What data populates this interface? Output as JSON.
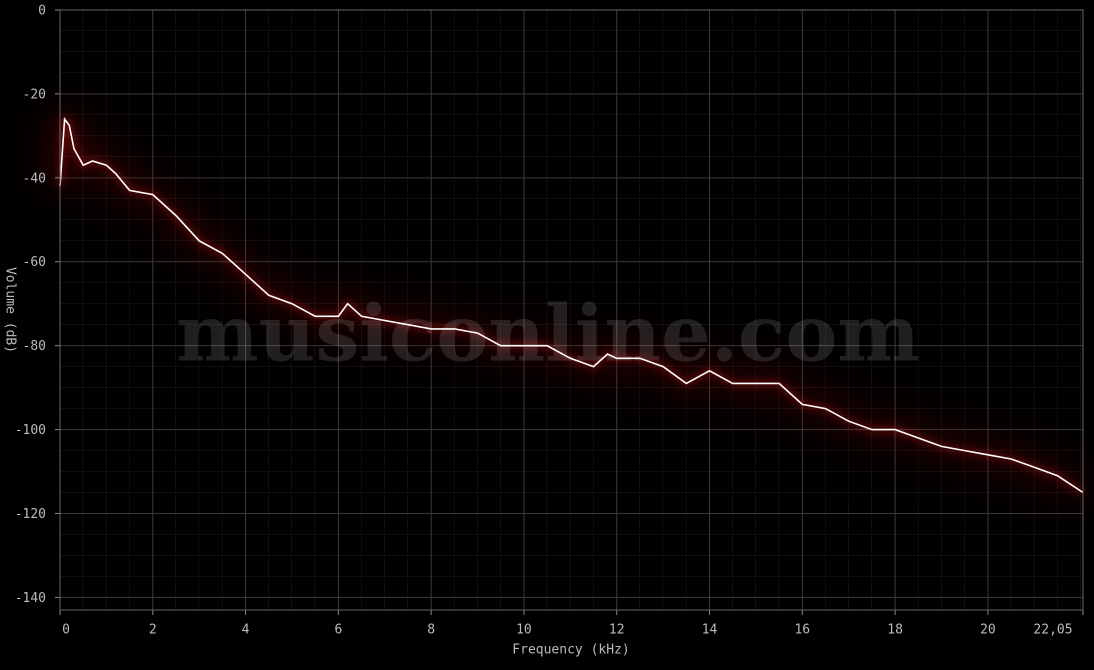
{
  "chart_data": {
    "type": "line",
    "x_label": "Frequency (kHz)",
    "y_label": "Volume (dB)",
    "watermark": "musiconline.com",
    "x": [
      0,
      0.1,
      0.2,
      0.3,
      0.5,
      0.7,
      1.0,
      1.2,
      1.5,
      2.0,
      2.5,
      3.0,
      3.5,
      4.0,
      4.5,
      5.0,
      5.5,
      6.0,
      6.2,
      6.5,
      7.0,
      7.5,
      8.0,
      8.5,
      9.0,
      9.5,
      10.0,
      10.5,
      11.0,
      11.5,
      11.8,
      12.0,
      12.5,
      13.0,
      13.5,
      14.0,
      14.5,
      15.0,
      15.5,
      16.0,
      16.5,
      17.0,
      17.5,
      18.0,
      18.5,
      19.0,
      19.5,
      20.0,
      20.5,
      21.0,
      21.5,
      22.05
    ],
    "series": [
      {
        "color": "#ffffff",
        "values": [
          -42,
          -26,
          -27.5,
          -33,
          -37,
          -36,
          -37,
          -39,
          -43,
          -44,
          -49,
          -55,
          -58,
          -63,
          -68,
          -70,
          -73,
          -73,
          -70,
          -73,
          -74,
          -75,
          -76,
          -76,
          -77,
          -80,
          -80,
          -80,
          -83,
          -85,
          -82,
          -83,
          -83,
          -85,
          -89,
          -86,
          -89,
          -89,
          -89,
          -94,
          -95,
          -98,
          -100,
          -100,
          -102,
          -104,
          -105,
          -106,
          -107,
          -109,
          -111,
          -115
        ]
      }
    ],
    "xlim": [
      0,
      22.05
    ],
    "ylim": [
      -143,
      0
    ],
    "xticks": [
      0,
      2,
      4,
      6,
      8,
      10,
      12,
      14,
      16,
      18,
      20,
      {
        "value": 22.05,
        "label": "22,05"
      }
    ],
    "yticks": [
      0,
      -20,
      -40,
      -60,
      -80,
      -100,
      -120,
      -140
    ],
    "grid": true
  }
}
